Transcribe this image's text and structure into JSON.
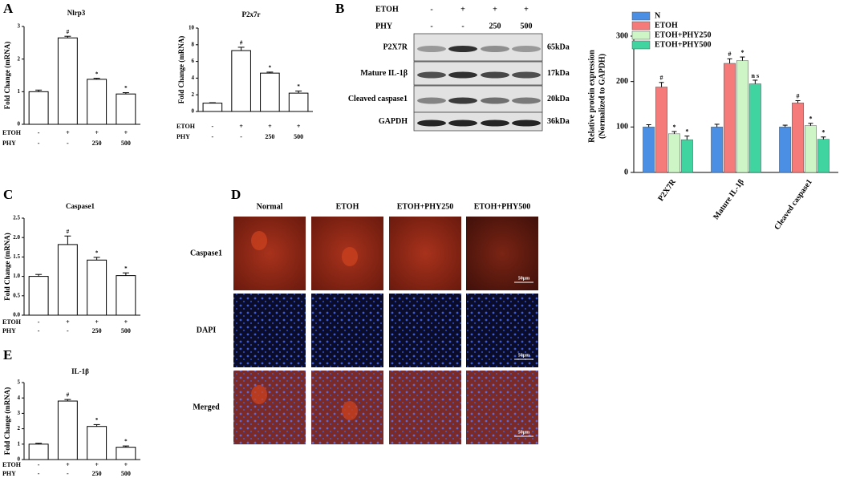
{
  "panel_letters": [
    "A",
    "B",
    "C",
    "D",
    "E"
  ],
  "chart_data": [
    {
      "type": "bar",
      "title": "Nlrp3",
      "y_label": "Fold Change (mRNA)",
      "values": [
        1.0,
        2.65,
        1.38,
        0.93
      ],
      "errors": [
        0.05,
        0.05,
        0.03,
        0.04
      ],
      "annotations": [
        null,
        "#",
        "*",
        "*"
      ],
      "ylim": [
        0,
        3
      ],
      "yticks": [
        0,
        1,
        2,
        3
      ],
      "conditions": [
        {
          "name": "ETOH",
          "values": [
            "-",
            "+",
            "+",
            "+"
          ]
        },
        {
          "name": "PHY",
          "values": [
            "-",
            "-",
            "250",
            "500"
          ]
        }
      ]
    },
    {
      "type": "bar",
      "title": "P2x7r",
      "y_label": "Fold Change (mRNA)",
      "values": [
        1.0,
        7.3,
        4.6,
        2.2
      ],
      "errors": [
        0.05,
        0.4,
        0.12,
        0.25
      ],
      "annotations": [
        null,
        "#",
        "*",
        "*"
      ],
      "ylim": [
        0,
        10
      ],
      "yticks": [
        0,
        2,
        4,
        6,
        8,
        10
      ],
      "conditions": [
        {
          "name": "ETOH",
          "values": [
            "-",
            "+",
            "+",
            "+"
          ]
        },
        {
          "name": "PHY",
          "values": [
            "-",
            "-",
            "250",
            "500"
          ]
        }
      ]
    },
    {
      "type": "bar",
      "title": "Caspase1",
      "y_label": "Fold Change (mRNA)",
      "values": [
        1.0,
        1.82,
        1.42,
        1.02
      ],
      "errors": [
        0.05,
        0.22,
        0.07,
        0.07
      ],
      "annotations": [
        null,
        "#",
        "*",
        "*"
      ],
      "ylim": [
        0,
        2.5
      ],
      "yticks": [
        {
          "value": 0,
          "label": "0.0"
        },
        0.5,
        {
          "value": 1,
          "label": "1.0"
        },
        1.5,
        {
          "value": 2,
          "label": "2.0"
        },
        2.5
      ],
      "conditions": [
        {
          "name": "ETOH",
          "values": [
            "-",
            "+",
            "+",
            "+"
          ]
        },
        {
          "name": "PHY",
          "values": [
            "-",
            "-",
            "250",
            "500"
          ]
        }
      ]
    },
    {
      "type": "bar",
      "title": "IL-1β",
      "y_label": "Fold Change (mRNA)",
      "values": [
        1.0,
        3.8,
        2.15,
        0.8
      ],
      "errors": [
        0.06,
        0.1,
        0.12,
        0.08
      ],
      "annotations": [
        null,
        "#",
        "*",
        "*"
      ],
      "ylim": [
        0,
        5
      ],
      "yticks": [
        0,
        1,
        2,
        3,
        4,
        5
      ],
      "conditions": [
        {
          "name": "ETOH",
          "values": [
            "-",
            "+",
            "+",
            "+"
          ]
        },
        {
          "name": "PHY",
          "values": [
            "-",
            "-",
            "250",
            "500"
          ]
        }
      ]
    },
    {
      "type": "grouped_bar",
      "y_label": [
        "Relative protein expression",
        "(Normalized to GAPDH)"
      ],
      "categories": [
        "P2X7R",
        "Mature IL-1β",
        "Cleaved caspase1"
      ],
      "ylim": [
        0,
        300
      ],
      "yticks": [
        0,
        100,
        200,
        300
      ],
      "series": [
        {
          "name": "N",
          "color": "#4a8fe3",
          "values": [
            100,
            100,
            100
          ],
          "errors": [
            5,
            6,
            4
          ],
          "annotations": [
            null,
            null,
            null
          ]
        },
        {
          "name": "ETOH",
          "color": "#f47b79",
          "values": [
            188,
            240,
            153
          ],
          "errors": [
            10,
            10,
            5
          ],
          "annotations": [
            "#",
            "#",
            "#"
          ]
        },
        {
          "name": "ETOH+PHY250",
          "color": "#cdf5c6",
          "values": [
            85,
            246,
            103
          ],
          "errors": [
            5,
            8,
            5
          ],
          "annotations": [
            "*",
            "*",
            "*"
          ]
        },
        {
          "name": "ETOH+PHY500",
          "color": "#3fd4a0",
          "values": [
            72,
            195,
            73
          ],
          "errors": [
            8,
            8,
            5
          ],
          "annotations": [
            "*",
            "n s",
            "*"
          ]
        }
      ]
    }
  ],
  "blot": {
    "conditions": [
      {
        "name": "ETOH",
        "values": [
          "-",
          "+",
          "+",
          "+"
        ]
      },
      {
        "name": "PHY",
        "values": [
          "-",
          "-",
          "250",
          "500"
        ]
      }
    ],
    "bands": [
      {
        "name": "P2X7R",
        "size": "65kDa"
      },
      {
        "name": "Mature IL-1β",
        "size": "17kDa"
      },
      {
        "name": "Cleaved caspase1",
        "size": "20kDa"
      },
      {
        "name": "GAPDH",
        "size": "36kDa"
      }
    ]
  },
  "micrograph": {
    "columns": [
      "Normal",
      "ETOH",
      "ETOH+PHY250",
      "ETOH+PHY500"
    ],
    "rows": [
      "Caspase1",
      "DAPI",
      "Merged"
    ],
    "scale_bar": "50μm"
  }
}
